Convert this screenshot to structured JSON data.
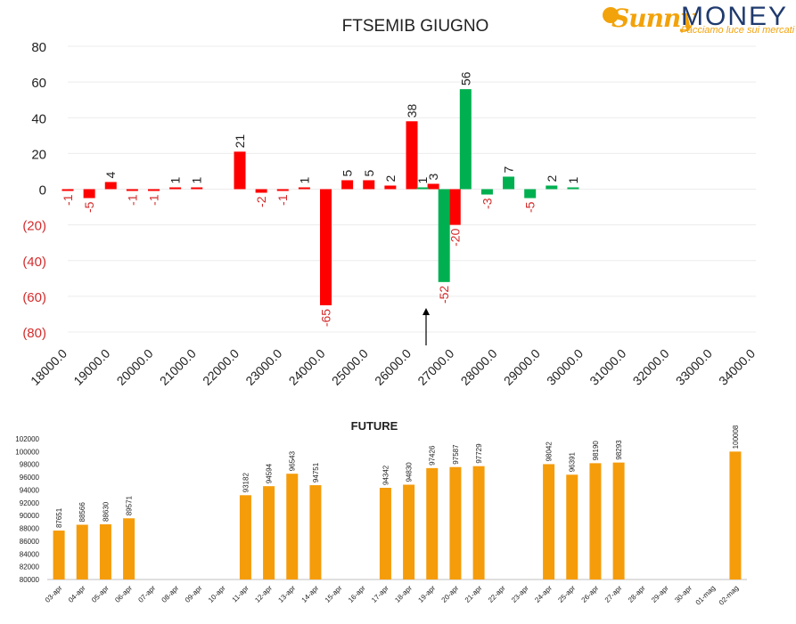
{
  "logo": {
    "brand_part1": "Sunny",
    "brand_part2": "MONEY",
    "tagline": "Facciamo luce sui mercati",
    "color_sunny": "#f2a20a",
    "color_money": "#1f3a6e"
  },
  "colors": {
    "red": "#ff0000",
    "green": "#00b050",
    "orange": "#f59c0a",
    "negative_text": "#d42b2b",
    "text": "#222222"
  },
  "chart_data": [
    {
      "type": "bar",
      "title": "FTSEMIB GIUGNO",
      "xlabel": "",
      "ylabel": "",
      "xlim": [
        18000,
        34000
      ],
      "ylim": [
        -80,
        80
      ],
      "x_tick_labels": [
        "18000.0",
        "19000.0",
        "20000.0",
        "21000.0",
        "22000.0",
        "23000.0",
        "24000.0",
        "25000.0",
        "26000.0",
        "27000.0",
        "28000.0",
        "29000.0",
        "30000.0",
        "31000.0",
        "32000.0",
        "33000.0",
        "34000.0"
      ],
      "y_tick_labels": [
        "80",
        "60",
        "40",
        "20",
        "0",
        "(20)",
        "(40)",
        "(60)",
        "(80)"
      ],
      "grid": true,
      "legend": "none",
      "series": [
        {
          "color": "red",
          "points": [
            {
              "x": 18000,
              "value": -1
            },
            {
              "x": 18500,
              "value": -5
            },
            {
              "x": 19000,
              "value": 4
            },
            {
              "x": 19500,
              "value": -1
            },
            {
              "x": 20000,
              "value": -1
            },
            {
              "x": 20500,
              "value": 1
            },
            {
              "x": 21000,
              "value": 1
            },
            {
              "x": 22000,
              "value": 21
            },
            {
              "x": 22500,
              "value": -2
            },
            {
              "x": 23000,
              "value": -1
            },
            {
              "x": 23500,
              "value": 1
            },
            {
              "x": 24000,
              "value": -65
            },
            {
              "x": 24500,
              "value": 5
            },
            {
              "x": 25000,
              "value": 5
            },
            {
              "x": 25500,
              "value": 2
            },
            {
              "x": 26000,
              "value": 38
            },
            {
              "x": 26500,
              "value": 3
            },
            {
              "x": 27000,
              "value": -20
            }
          ]
        },
        {
          "color": "green",
          "points": [
            {
              "x": 26000,
              "value": 1
            },
            {
              "x": 26500,
              "value": -52
            },
            {
              "x": 27000,
              "value": 56
            },
            {
              "x": 27500,
              "value": -3
            },
            {
              "x": 28000,
              "value": 7
            },
            {
              "x": 28500,
              "value": -5
            },
            {
              "x": 29000,
              "value": 2
            },
            {
              "x": 29500,
              "value": 1
            }
          ]
        }
      ],
      "annotations": [
        {
          "type": "arrow",
          "direction": "up",
          "x": 26000
        }
      ]
    },
    {
      "type": "bar",
      "title": "FUTURE",
      "xlabel": "",
      "ylabel": "",
      "ylim": [
        80000,
        102000
      ],
      "y_tick_labels": [
        "80000",
        "82000",
        "84000",
        "86000",
        "88000",
        "90000",
        "92000",
        "94000",
        "96000",
        "98000",
        "100000",
        "102000"
      ],
      "color": "orange",
      "categories": [
        "03-apr",
        "04-apr",
        "05-apr",
        "06-apr",
        "07-apr",
        "08-apr",
        "09-apr",
        "10-apr",
        "11-apr",
        "12-apr",
        "13-apr",
        "14-apr",
        "15-apr",
        "16-apr",
        "17-apr",
        "18-apr",
        "19-apr",
        "20-apr",
        "21-apr",
        "22-apr",
        "23-apr",
        "24-apr",
        "25-apr",
        "26-apr",
        "27-apr",
        "28-apr",
        "29-apr",
        "30-apr",
        "01-mag",
        "02-mag"
      ],
      "values": [
        87651,
        88566,
        88630,
        89571,
        null,
        null,
        null,
        null,
        93182,
        94594,
        96543,
        94751,
        null,
        null,
        94342,
        94830,
        97426,
        97587,
        97729,
        null,
        null,
        98042,
        96391,
        98190,
        98293,
        null,
        null,
        null,
        null,
        100008
      ],
      "grid": false,
      "legend": "none"
    }
  ]
}
